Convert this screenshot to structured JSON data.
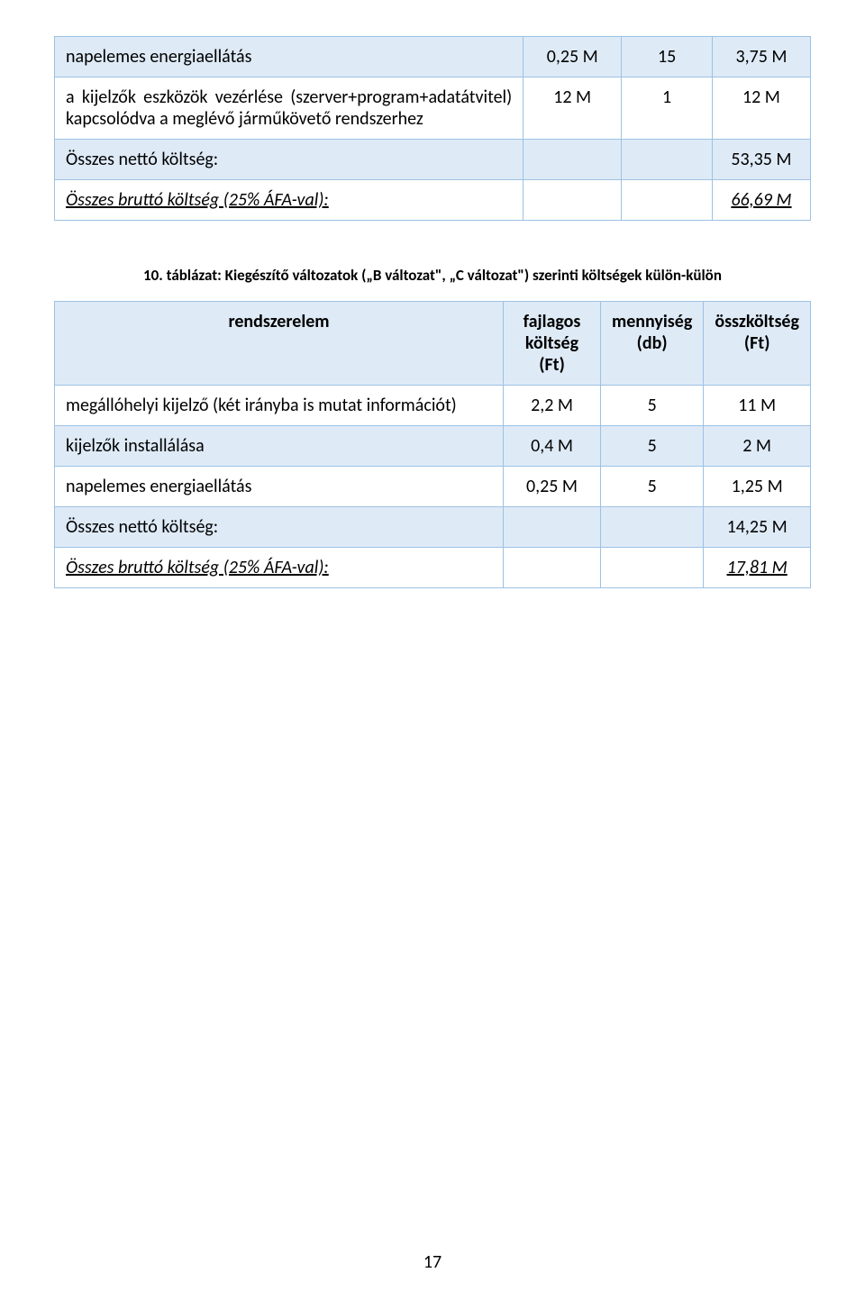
{
  "table1": {
    "rows": [
      {
        "label": "napelemes energiaellátás",
        "c2": "0,25 M",
        "c3": "15",
        "c4": "3,75 M",
        "blue": true,
        "bold": false
      },
      {
        "label": "a kijelzők eszközök vezérlése (szerver+program+adatátvitel) kapcsolódva a meglévő járműkövető rendszerhez",
        "c2": "12 M",
        "c3": "1",
        "c4": "12 M",
        "blue": false,
        "bold": false,
        "justify": true
      },
      {
        "label": "Összes nettó költség:",
        "c2": "",
        "c3": "",
        "c4": "53,35 M",
        "blue": true,
        "bold": false
      },
      {
        "label": "Összes bruttó költség (25% ÁFA-val):",
        "c2": "",
        "c3": "",
        "c4": "66,69 M",
        "blue": false,
        "ital_under": true
      }
    ]
  },
  "caption": "10. táblázat: Kiegészítő változatok („B változat\", „C változat\") szerinti költségek külön-külön",
  "table2": {
    "header": {
      "c1": "rendszerelem",
      "c2": "fajlagos költség (Ft)",
      "c3": "mennyiség (db)",
      "c4": "összköltség (Ft)"
    },
    "rows": [
      {
        "label": "megállóhelyi kijelző (két irányba is mutat információt)",
        "c2": "2,2 M",
        "c3": "5",
        "c4": "11 M",
        "blue": false,
        "justify": true
      },
      {
        "label": "kijelzők installálása",
        "c2": "0,4 M",
        "c3": "5",
        "c4": "2 M",
        "blue": true
      },
      {
        "label": "napelemes energiaellátás",
        "c2": "0,25 M",
        "c3": "5",
        "c4": "1,25 M",
        "blue": false
      },
      {
        "label": "Összes nettó költség:",
        "c2": "",
        "c3": "",
        "c4": "14,25 M",
        "blue": true
      },
      {
        "label": "Összes bruttó költség (25% ÁFA-val):",
        "c2": "",
        "c3": "",
        "c4": "17,81 M",
        "blue": false,
        "ital_under": true
      }
    ]
  },
  "page_number": "17",
  "colors": {
    "row_blue": "#deeaf6",
    "border": "#9cc2e5",
    "background": "#ffffff",
    "text": "#000000"
  }
}
